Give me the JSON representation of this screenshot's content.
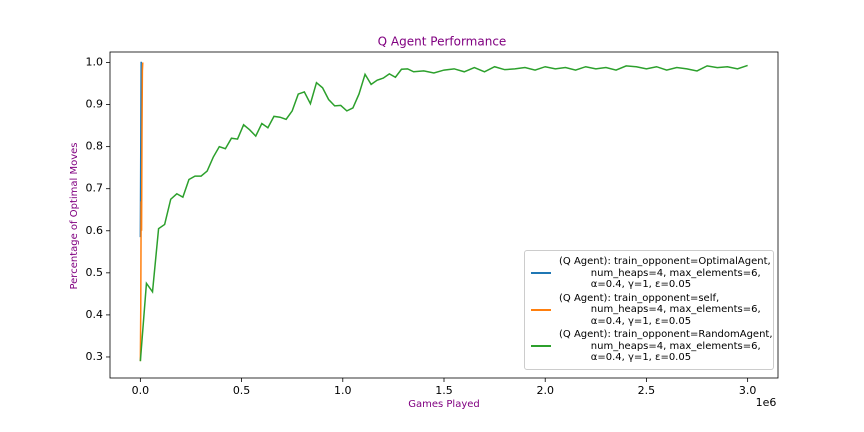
{
  "chart_data": {
    "type": "line",
    "title": "Q Agent Performance",
    "x_label": "Games Played",
    "y_label": "Percentage of Optimal Moves",
    "x_offset_label": "1e6",
    "xlim": [
      -0.15,
      3.15
    ],
    "ylim": [
      0.25,
      1.025
    ],
    "xticks": [
      {
        "value": 0,
        "label": "0.0"
      },
      {
        "value": 0.5,
        "label": "0.5"
      },
      {
        "value": 1,
        "label": "1.0"
      },
      {
        "value": 1.5,
        "label": "1.5"
      },
      {
        "value": 2,
        "label": "2.0"
      },
      {
        "value": 2.5,
        "label": "2.5"
      },
      {
        "value": 3,
        "label": "3.0"
      }
    ],
    "yticks": [
      0.3,
      0.4,
      0.5,
      0.6,
      0.7,
      0.8,
      0.9,
      {
        "value": 1,
        "label": "1.0"
      }
    ],
    "legend": "lower right",
    "series": [
      {
        "name": "(Q Agent): train_opponent=OptimalAgent,\n          num_heaps=4, max_elements=6,\n          α=0.4, γ=1, ε=0.05",
        "color": "#1f77b4",
        "x": [
          0,
          0.004,
          0.008
        ],
        "values": [
          0.585,
          1.0,
          1.0
        ]
      },
      {
        "name": "(Q Agent): train_opponent=self,\n          num_heaps=4, max_elements=6,\n          α=0.4, γ=1, ε=0.05",
        "color": "#ff7f0e",
        "x": [
          0,
          0.002,
          0.004,
          0.006,
          0.008,
          0.01,
          0.012
        ],
        "values": [
          0.29,
          0.42,
          0.67,
          0.6,
          0.83,
          0.98,
          1.0
        ]
      },
      {
        "name": "(Q Agent): train_opponent=RandomAgent,\n          num_heaps=4, max_elements=6,\n          α=0.4, γ=1, ε=0.05",
        "color": "#2ca02c",
        "x": [
          0,
          0.03,
          0.06,
          0.09,
          0.12,
          0.15,
          0.18,
          0.21,
          0.24,
          0.27,
          0.3,
          0.33,
          0.36,
          0.39,
          0.42,
          0.45,
          0.48,
          0.51,
          0.54,
          0.57,
          0.6,
          0.63,
          0.66,
          0.69,
          0.72,
          0.75,
          0.78,
          0.81,
          0.84,
          0.87,
          0.9,
          0.93,
          0.96,
          0.99,
          1.02,
          1.05,
          1.08,
          1.11,
          1.14,
          1.17,
          1.2,
          1.23,
          1.26,
          1.29,
          1.32,
          1.35,
          1.4,
          1.45,
          1.5,
          1.55,
          1.6,
          1.65,
          1.7,
          1.75,
          1.8,
          1.85,
          1.9,
          1.95,
          2.0,
          2.05,
          2.1,
          2.15,
          2.2,
          2.25,
          2.3,
          2.35,
          2.4,
          2.45,
          2.5,
          2.55,
          2.6,
          2.65,
          2.7,
          2.75,
          2.8,
          2.85,
          2.9,
          2.95,
          3.0
        ],
        "values": [
          0.29,
          0.475,
          0.455,
          0.605,
          0.615,
          0.675,
          0.688,
          0.68,
          0.722,
          0.73,
          0.73,
          0.742,
          0.775,
          0.8,
          0.795,
          0.82,
          0.818,
          0.852,
          0.84,
          0.825,
          0.855,
          0.845,
          0.872,
          0.87,
          0.865,
          0.885,
          0.925,
          0.93,
          0.902,
          0.952,
          0.94,
          0.912,
          0.897,
          0.898,
          0.885,
          0.892,
          0.925,
          0.972,
          0.948,
          0.958,
          0.963,
          0.973,
          0.965,
          0.984,
          0.985,
          0.978,
          0.98,
          0.975,
          0.982,
          0.985,
          0.978,
          0.988,
          0.978,
          0.99,
          0.983,
          0.985,
          0.988,
          0.982,
          0.99,
          0.985,
          0.988,
          0.982,
          0.99,
          0.985,
          0.988,
          0.982,
          0.992,
          0.99,
          0.985,
          0.99,
          0.982,
          0.988,
          0.985,
          0.98,
          0.992,
          0.988,
          0.99,
          0.985,
          0.993
        ]
      }
    ]
  }
}
